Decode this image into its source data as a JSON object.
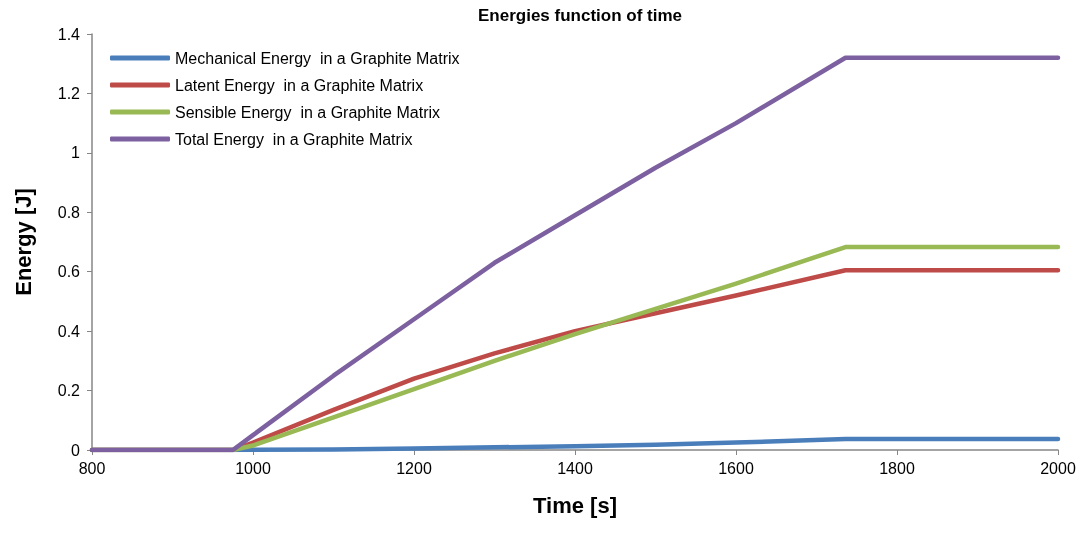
{
  "chart_data": {
    "type": "line",
    "title": "Energies function of time",
    "xlabel": "Time [s]",
    "ylabel": "Energy [J]",
    "x": [
      800,
      975,
      1000,
      1100,
      1200,
      1300,
      1400,
      1500,
      1600,
      1736,
      2000
    ],
    "series": [
      {
        "name": "Mechanical Energy  in a Graphite Matrix",
        "color": "#4a7ebb",
        "values": [
          0,
          0,
          0.001,
          0.002,
          0.005,
          0.009,
          0.013,
          0.018,
          0.025,
          0.037,
          0.037
        ]
      },
      {
        "name": "Latent Energy  in a Graphite Matrix",
        "color": "#be4b48",
        "values": [
          0,
          0,
          0.025,
          0.135,
          0.24,
          0.325,
          0.4,
          0.46,
          0.52,
          0.605,
          0.605
        ]
      },
      {
        "name": "Sensible Energy  in a Graphite Matrix",
        "color": "#98b954",
        "values": [
          0,
          0,
          0.015,
          0.11,
          0.205,
          0.3,
          0.39,
          0.475,
          0.56,
          0.683,
          0.683
        ]
      },
      {
        "name": "Total Energy  in a Graphite Matrix",
        "color": "#7d60a0",
        "values": [
          0,
          0,
          0.05,
          0.25,
          0.44,
          0.63,
          0.79,
          0.95,
          1.1,
          1.32,
          1.32
        ]
      }
    ],
    "xlim": [
      800,
      2000
    ],
    "xticks": [
      800,
      1000,
      1200,
      1400,
      1600,
      1800,
      2000
    ],
    "ylim": [
      0,
      1.4
    ],
    "yticks": [
      0,
      0.2,
      0.4,
      0.6,
      0.8,
      1,
      1.2,
      1.4
    ],
    "grid": false,
    "legend": "top left",
    "marker": "none",
    "line_style": "solid"
  }
}
